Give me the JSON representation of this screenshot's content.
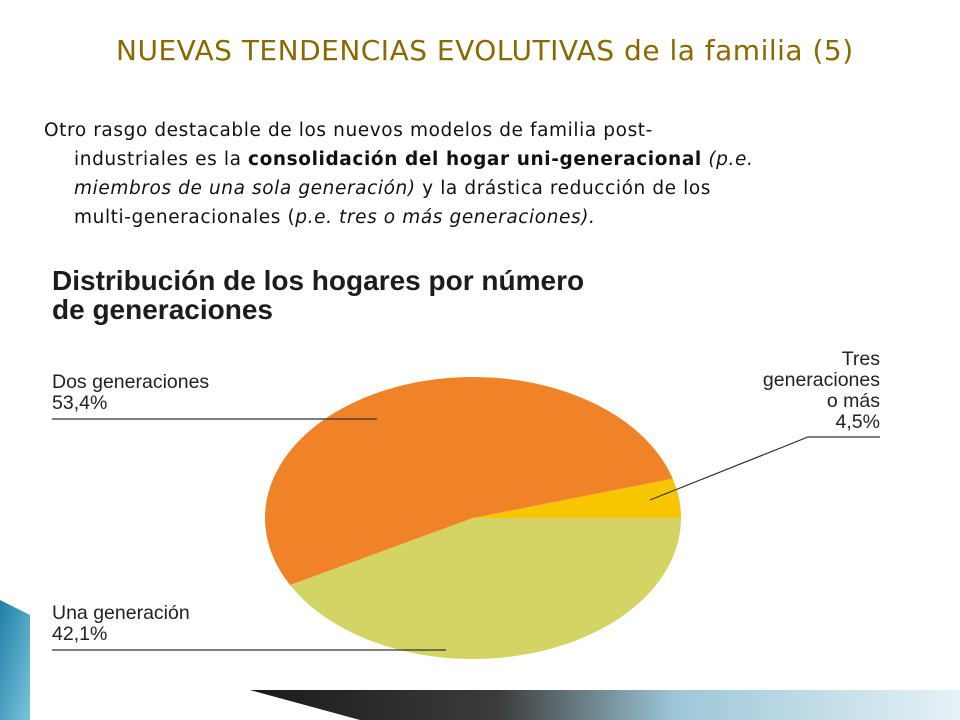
{
  "slide": {
    "title": "NUEVAS TENDENCIAS EVOLUTIVAS de la familia (5)",
    "paragraph": {
      "l1": "Otro rasgo destacable de los nuevos modelos de familia post-",
      "l2_plain": "industriales es la ",
      "l2_bold": "consolidación del hogar uni-generacional",
      "l2_italic": " (p.e.",
      "l3_italic": "miembros de una sola generación)",
      "l3_plain": " y la drástica reducción de los",
      "l4_plain": "multi-generacionales (",
      "l4_italic": "p.e. tres o más generaciones).",
      "l4_end": ""
    }
  },
  "chart_data": {
    "type": "pie",
    "title_lines": [
      "Distribución de los hogares por número",
      "de generaciones"
    ],
    "slices": [
      {
        "label_lines": [
          "Tres",
          "generaciones",
          "o más"
        ],
        "value_label": "4,5%",
        "value": 4.5,
        "color": "#f7c600"
      },
      {
        "label_lines": [
          "Una generación"
        ],
        "value_label": "42,1%",
        "value": 42.1,
        "color": "#d4d464"
      },
      {
        "label_lines": [
          "Dos generaciones"
        ],
        "value_label": "53,4%",
        "value": 53.4,
        "color": "#f08227"
      }
    ],
    "unit": "%"
  },
  "colors": {
    "title": "#8a6a00",
    "leader_line": "#333333",
    "deco_teal": "#4fa6c8"
  }
}
